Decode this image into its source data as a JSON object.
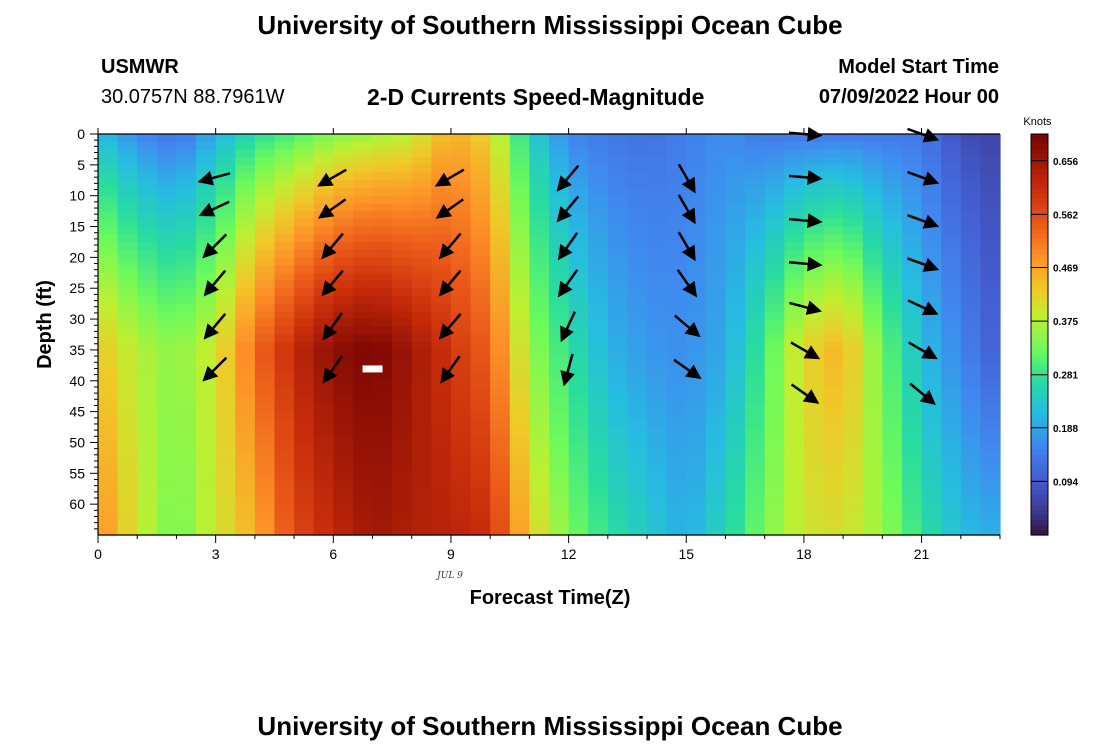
{
  "header": {
    "title_top": "University of Southern Mississippi Ocean Cube",
    "station": "USMWR",
    "coords": "30.0757N  88.7961W",
    "subtitle": "2-D Currents Speed-Magnitude",
    "model_start_label": "Model Start Time",
    "model_start_value": "07/09/2022 Hour 00",
    "title_bottom": "University of Southern Mississippi Ocean Cube"
  },
  "chart_data": {
    "type": "heatmap",
    "xlabel": "Forecast Time(Z)",
    "ylabel": "Depth (ft)",
    "date_label": "JUL 9",
    "xlim": [
      0,
      23
    ],
    "ylim": [
      65,
      0
    ],
    "x_ticks": [
      0,
      3,
      6,
      9,
      12,
      15,
      18,
      21
    ],
    "y_ticks": [
      0,
      5,
      10,
      15,
      20,
      25,
      30,
      35,
      40,
      45,
      50,
      55,
      60
    ],
    "colorbar": {
      "label": "Knots",
      "range": [
        0.0,
        0.703
      ],
      "ticks": [
        "0.656",
        "0.562",
        "0.469",
        "0.375",
        "0.281",
        "0.188",
        "0.094"
      ],
      "tick_values": [
        0.656,
        0.562,
        0.469,
        0.375,
        0.281,
        0.188,
        0.094
      ]
    },
    "speed_profiles": {
      "description_hours": [
        0,
        1,
        2,
        3,
        4,
        5,
        6,
        7,
        8,
        9,
        10,
        11,
        12,
        13,
        14,
        15,
        16,
        17,
        18,
        19,
        20,
        21,
        22,
        23
      ],
      "surface_knots": [
        0.22,
        0.16,
        0.13,
        0.2,
        0.27,
        0.3,
        0.34,
        0.36,
        0.38,
        0.46,
        0.42,
        0.25,
        0.16,
        0.14,
        0.13,
        0.15,
        0.17,
        0.14,
        0.14,
        0.14,
        0.14,
        0.14,
        0.08,
        0.06
      ],
      "mid_knots": [
        0.44,
        0.38,
        0.35,
        0.4,
        0.53,
        0.62,
        0.68,
        0.7,
        0.66,
        0.6,
        0.54,
        0.36,
        0.28,
        0.21,
        0.18,
        0.17,
        0.2,
        0.3,
        0.42,
        0.46,
        0.33,
        0.22,
        0.16,
        0.1
      ],
      "bottom_knots": [
        0.5,
        0.4,
        0.33,
        0.4,
        0.46,
        0.57,
        0.62,
        0.66,
        0.64,
        0.63,
        0.61,
        0.43,
        0.34,
        0.28,
        0.24,
        0.2,
        0.26,
        0.34,
        0.4,
        0.41,
        0.36,
        0.28,
        0.22,
        0.2
      ]
    },
    "vectors": [
      {
        "hour": 3,
        "depths": [
          7,
          12,
          18,
          24,
          31,
          38
        ],
        "angle_deg": [
          195,
          205,
          225,
          230,
          230,
          225
        ]
      },
      {
        "hour": 6,
        "depths": [
          7,
          12,
          18,
          24,
          31,
          38
        ],
        "angle_deg": [
          210,
          215,
          230,
          230,
          235,
          235
        ]
      },
      {
        "hour": 9,
        "depths": [
          7,
          12,
          18,
          24,
          31,
          38
        ],
        "angle_deg": [
          210,
          215,
          230,
          230,
          230,
          235
        ]
      },
      {
        "hour": 12,
        "depths": [
          7,
          12,
          18,
          24,
          31,
          38
        ],
        "angle_deg": [
          230,
          230,
          235,
          235,
          245,
          255
        ]
      },
      {
        "hour": 15,
        "depths": [
          7,
          12,
          18,
          24,
          31,
          38
        ],
        "angle_deg": [
          300,
          300,
          300,
          305,
          320,
          325
        ]
      },
      {
        "hour": 18,
        "depths": [
          0,
          7,
          14,
          21,
          28,
          35,
          42
        ],
        "angle_deg": [
          355,
          355,
          355,
          355,
          345,
          330,
          325
        ]
      },
      {
        "hour": 21,
        "depths": [
          0,
          7,
          14,
          21,
          28,
          35,
          42
        ],
        "angle_deg": [
          340,
          340,
          340,
          340,
          335,
          330,
          320
        ]
      }
    ],
    "marker": {
      "hour": 7,
      "depth": 38
    }
  }
}
